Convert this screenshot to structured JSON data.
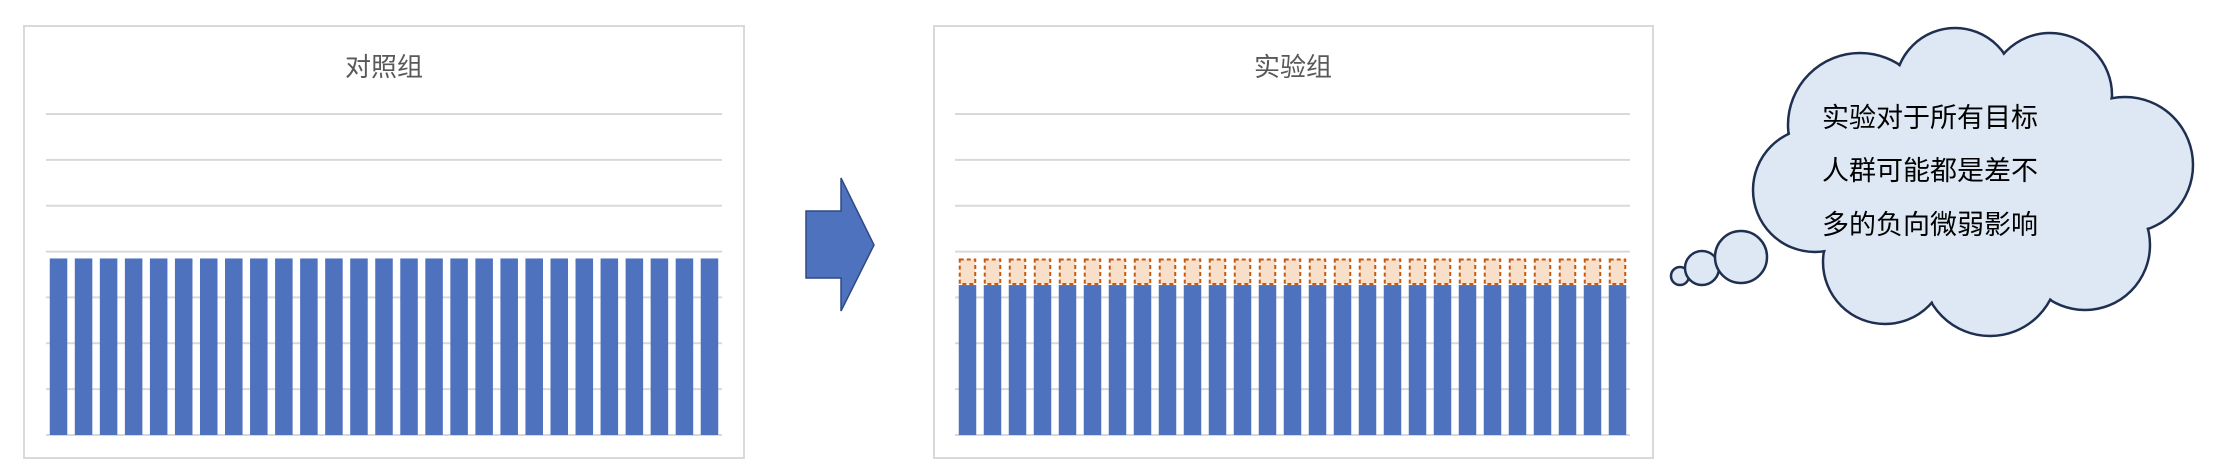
{
  "colors": {
    "bar_blue": "#4f72be",
    "effect_fill": "#f8dfca",
    "effect_border": "#c55a11",
    "arrow_fill": "#4f72be",
    "arrow_stroke": "#2f4a85",
    "cloud_fill": "#dde8f4",
    "cloud_stroke": "#1f2f4f",
    "gridline": "#d9d9d9",
    "frame": "#d9d9d9"
  },
  "chart_data": [
    {
      "type": "bar",
      "title": "对照组",
      "categories_count": 27,
      "ylim": [
        0,
        7
      ],
      "grid": true,
      "series": [
        {
          "values": [
            3.85,
            3.85,
            3.85,
            3.85,
            3.85,
            3.85,
            3.85,
            3.85,
            3.85,
            3.85,
            3.85,
            3.85,
            3.85,
            3.85,
            3.85,
            3.85,
            3.85,
            3.85,
            3.85,
            3.85,
            3.85,
            3.85,
            3.85,
            3.85,
            3.85,
            3.85,
            3.85
          ]
        }
      ]
    },
    {
      "type": "bar",
      "stacked": true,
      "title": "实验组",
      "categories_count": 27,
      "ylim": [
        0,
        7
      ],
      "grid": true,
      "series": [
        {
          "values": [
            3.27,
            3.27,
            3.27,
            3.27,
            3.27,
            3.27,
            3.27,
            3.27,
            3.27,
            3.27,
            3.27,
            3.27,
            3.27,
            3.27,
            3.27,
            3.27,
            3.27,
            3.27,
            3.27,
            3.27,
            3.27,
            3.27,
            3.27,
            3.27,
            3.27,
            3.27,
            3.27
          ]
        },
        {
          "style": "dashed-outline",
          "values": [
            0.58,
            0.58,
            0.58,
            0.58,
            0.58,
            0.58,
            0.58,
            0.58,
            0.58,
            0.58,
            0.58,
            0.58,
            0.58,
            0.58,
            0.58,
            0.58,
            0.58,
            0.58,
            0.58,
            0.58,
            0.58,
            0.58,
            0.58,
            0.58,
            0.58,
            0.58,
            0.58
          ]
        }
      ]
    }
  ],
  "arrow": {
    "icon": "right-arrow-icon"
  },
  "thought_bubble": {
    "lines": [
      "实验对于所有目标",
      "人群可能都是差不",
      "多的负向微弱影响"
    ]
  }
}
